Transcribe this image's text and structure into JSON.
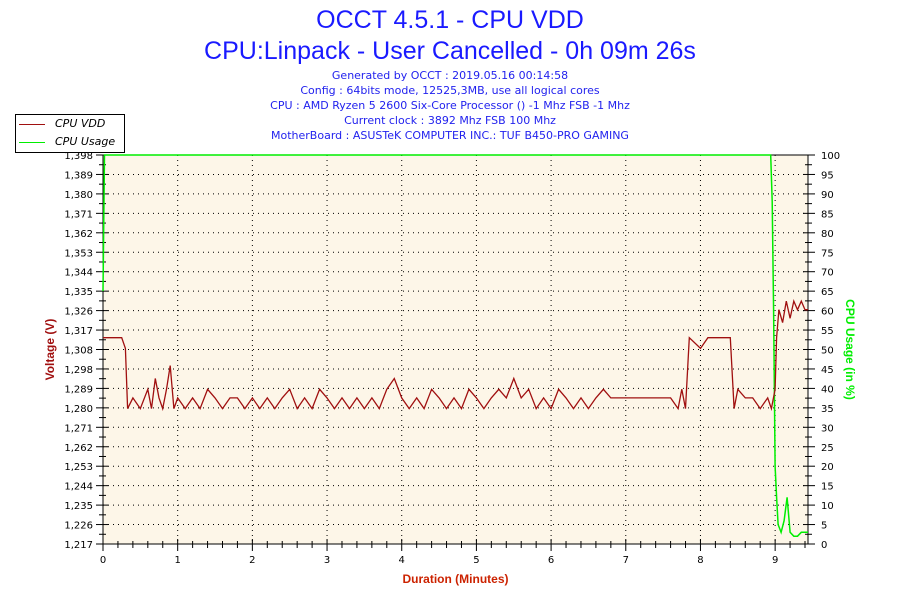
{
  "header": {
    "title": "OCCT 4.5.1 - CPU VDD",
    "subtitle": "CPU:Linpack - User Cancelled - 0h 09m 26s",
    "info": [
      "Generated by OCCT : 2019.05.16 00:14:58",
      "Config : 64bits mode, 12525,3MB, use all logical cores",
      "CPU : AMD Ryzen 5 2600 Six-Core Processor () -1 Mhz FSB -1 Mhz",
      "Current clock : 3892 Mhz FSB 100 Mhz",
      "MotherBoard : ASUSTeK COMPUTER INC.: TUF B450-PRO GAMING"
    ]
  },
  "colors": {
    "vdd": "#a01010",
    "usage": "#00ee00",
    "plot_bg": "#fdf6e8",
    "title": "#1a1aff",
    "axis_label_left": "#a01010",
    "axis_label_right": "#00ee00",
    "axis_label_bottom": "#cc2200"
  },
  "chart_data": {
    "type": "line",
    "title": "OCCT 4.5.1 - CPU VDD",
    "xlabel": "Duration (Minutes)",
    "ylabel": "Voltage (V)",
    "y2label": "CPU Usage (in %)",
    "xlim": [
      0,
      9.44
    ],
    "ylim": [
      1.217,
      1.398
    ],
    "y2lim": [
      0,
      100
    ],
    "grid": true,
    "legend_placement": "top-left",
    "xticks": [
      "0",
      "1",
      "2",
      "3",
      "4",
      "5",
      "6",
      "7",
      "8",
      "9"
    ],
    "yticks": [
      "1,217",
      "1,226",
      "1,235",
      "1,244",
      "1,253",
      "1,262",
      "1,271",
      "1,280",
      "1,289",
      "1,298",
      "1,308",
      "1,317",
      "1,326",
      "1,335",
      "1,344",
      "1,353",
      "1,362",
      "1,371",
      "1,380",
      "1,389",
      "1,398"
    ],
    "y2ticks": [
      "0",
      "5",
      "10",
      "15",
      "20",
      "25",
      "30",
      "35",
      "40",
      "45",
      "50",
      "55",
      "60",
      "65",
      "70",
      "75",
      "80",
      "85",
      "90",
      "95",
      "100"
    ],
    "series": [
      {
        "name": "CPU VDD",
        "axis": "left",
        "points": [
          [
            0,
            1.313
          ],
          [
            0.25,
            1.313
          ],
          [
            0.3,
            1.308
          ],
          [
            0.33,
            1.28
          ],
          [
            0.4,
            1.285
          ],
          [
            0.5,
            1.28
          ],
          [
            0.6,
            1.289
          ],
          [
            0.65,
            1.28
          ],
          [
            0.7,
            1.294
          ],
          [
            0.75,
            1.285
          ],
          [
            0.8,
            1.28
          ],
          [
            0.85,
            1.289
          ],
          [
            0.9,
            1.3
          ],
          [
            0.95,
            1.28
          ],
          [
            1.0,
            1.285
          ],
          [
            1.1,
            1.28
          ],
          [
            1.2,
            1.285
          ],
          [
            1.3,
            1.28
          ],
          [
            1.4,
            1.289
          ],
          [
            1.5,
            1.285
          ],
          [
            1.6,
            1.28
          ],
          [
            1.7,
            1.285
          ],
          [
            1.8,
            1.285
          ],
          [
            1.9,
            1.28
          ],
          [
            2.0,
            1.285
          ],
          [
            2.1,
            1.28
          ],
          [
            2.2,
            1.285
          ],
          [
            2.3,
            1.28
          ],
          [
            2.4,
            1.285
          ],
          [
            2.5,
            1.289
          ],
          [
            2.6,
            1.28
          ],
          [
            2.7,
            1.285
          ],
          [
            2.8,
            1.28
          ],
          [
            2.9,
            1.289
          ],
          [
            3.0,
            1.285
          ],
          [
            3.1,
            1.28
          ],
          [
            3.2,
            1.285
          ],
          [
            3.3,
            1.28
          ],
          [
            3.4,
            1.285
          ],
          [
            3.5,
            1.28
          ],
          [
            3.6,
            1.285
          ],
          [
            3.7,
            1.28
          ],
          [
            3.8,
            1.289
          ],
          [
            3.9,
            1.294
          ],
          [
            4.0,
            1.285
          ],
          [
            4.1,
            1.28
          ],
          [
            4.2,
            1.285
          ],
          [
            4.3,
            1.28
          ],
          [
            4.4,
            1.289
          ],
          [
            4.5,
            1.285
          ],
          [
            4.6,
            1.28
          ],
          [
            4.7,
            1.285
          ],
          [
            4.8,
            1.28
          ],
          [
            4.9,
            1.289
          ],
          [
            5.0,
            1.285
          ],
          [
            5.1,
            1.28
          ],
          [
            5.2,
            1.285
          ],
          [
            5.3,
            1.289
          ],
          [
            5.4,
            1.285
          ],
          [
            5.5,
            1.294
          ],
          [
            5.6,
            1.285
          ],
          [
            5.7,
            1.289
          ],
          [
            5.8,
            1.28
          ],
          [
            5.9,
            1.285
          ],
          [
            6.0,
            1.28
          ],
          [
            6.1,
            1.289
          ],
          [
            6.2,
            1.285
          ],
          [
            6.3,
            1.28
          ],
          [
            6.4,
            1.285
          ],
          [
            6.5,
            1.28
          ],
          [
            6.6,
            1.285
          ],
          [
            6.7,
            1.289
          ],
          [
            6.8,
            1.285
          ],
          [
            7.0,
            1.285
          ],
          [
            7.2,
            1.285
          ],
          [
            7.4,
            1.285
          ],
          [
            7.6,
            1.285
          ],
          [
            7.7,
            1.28
          ],
          [
            7.75,
            1.289
          ],
          [
            7.8,
            1.28
          ],
          [
            7.85,
            1.313
          ],
          [
            8.0,
            1.308
          ],
          [
            8.1,
            1.313
          ],
          [
            8.4,
            1.313
          ],
          [
            8.45,
            1.28
          ],
          [
            8.5,
            1.289
          ],
          [
            8.6,
            1.285
          ],
          [
            8.7,
            1.285
          ],
          [
            8.8,
            1.28
          ],
          [
            8.9,
            1.285
          ],
          [
            8.95,
            1.28
          ],
          [
            9.0,
            1.289
          ],
          [
            9.02,
            1.313
          ],
          [
            9.05,
            1.326
          ],
          [
            9.1,
            1.32
          ],
          [
            9.15,
            1.33
          ],
          [
            9.2,
            1.322
          ],
          [
            9.25,
            1.33
          ],
          [
            9.3,
            1.326
          ],
          [
            9.35,
            1.33
          ],
          [
            9.4,
            1.326
          ],
          [
            9.44,
            1.326
          ]
        ]
      },
      {
        "name": "CPU Usage",
        "axis": "right",
        "points": [
          [
            0,
            65
          ],
          [
            0.02,
            100
          ],
          [
            8.94,
            100
          ],
          [
            8.96,
            88
          ],
          [
            8.98,
            60
          ],
          [
            9.0,
            20
          ],
          [
            9.02,
            12
          ],
          [
            9.04,
            5
          ],
          [
            9.08,
            3
          ],
          [
            9.12,
            6
          ],
          [
            9.16,
            12
          ],
          [
            9.2,
            3
          ],
          [
            9.25,
            2
          ],
          [
            9.3,
            2
          ],
          [
            9.35,
            3
          ],
          [
            9.44,
            3
          ]
        ]
      }
    ]
  }
}
